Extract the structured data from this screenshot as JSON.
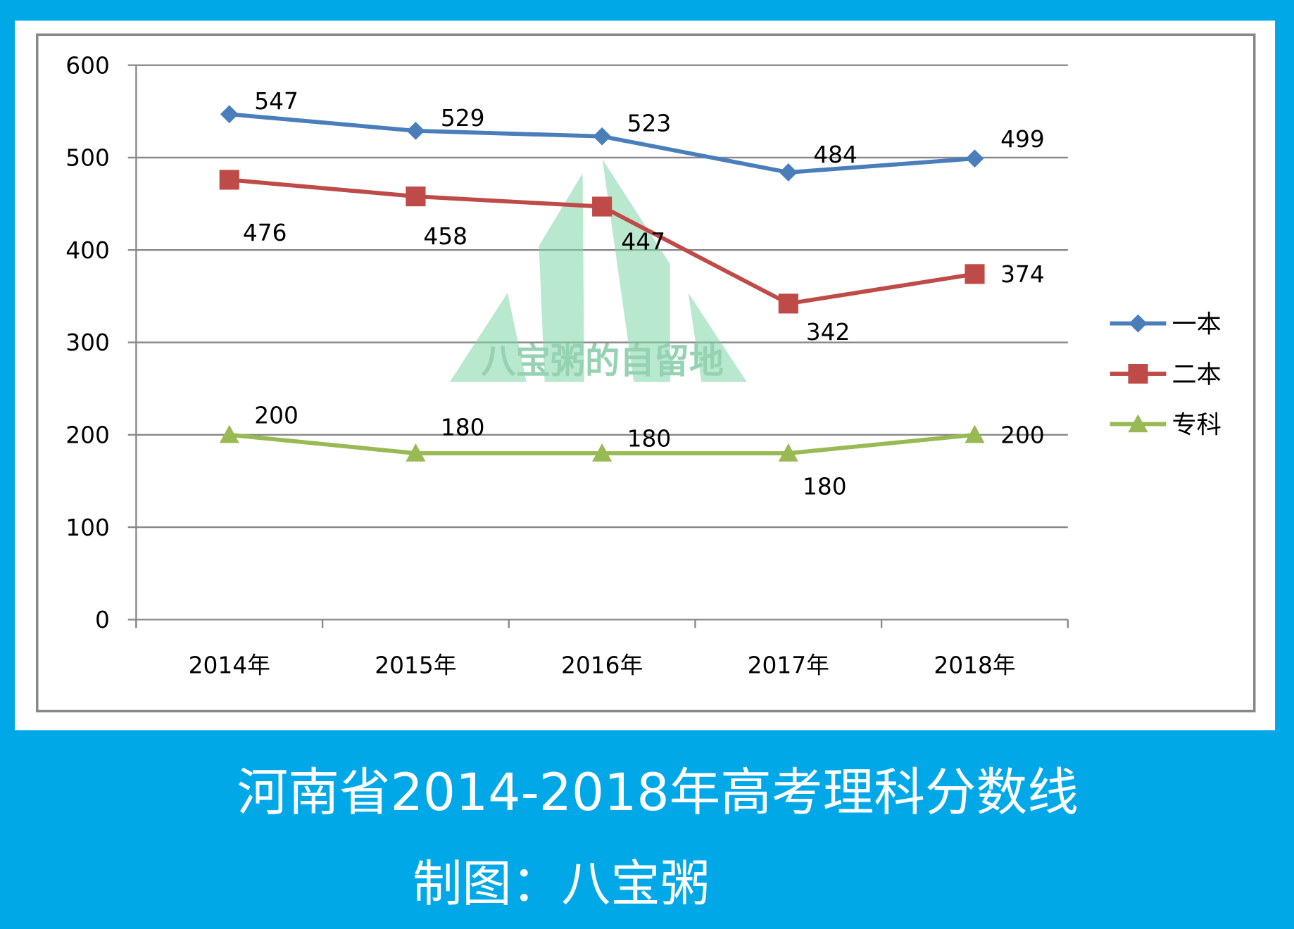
{
  "colors": {
    "background": "#00a8e8",
    "panel": "#ffffff",
    "grid": "#888888",
    "text": "#000000",
    "caption": "#ffffff",
    "watermark": "#7fd6a6"
  },
  "caption": {
    "title": "河南省2014-2018年高考理科分数线",
    "credit": "制图：八宝粥"
  },
  "watermark": {
    "text": "八宝粥的自留地"
  },
  "chart_data": {
    "type": "line",
    "title": "",
    "xlabel": "",
    "ylabel": "",
    "categories": [
      "2014年",
      "2015年",
      "2016年",
      "2017年",
      "2018年"
    ],
    "ylim": [
      0,
      600
    ],
    "yticks": [
      "0",
      "100",
      "200",
      "300",
      "400",
      "500",
      "600"
    ],
    "grid": true,
    "legend_position": "right",
    "series": [
      {
        "name": "一本",
        "values": [
          547,
          529,
          523,
          484,
          499
        ],
        "color": "#4a7ebb",
        "marker": "diamond"
      },
      {
        "name": "二本",
        "values": [
          476,
          458,
          447,
          342,
          374
        ],
        "color": "#be4b48",
        "marker": "square"
      },
      {
        "name": "专科",
        "values": [
          200,
          180,
          180,
          180,
          200
        ],
        "color": "#98b954",
        "marker": "triangle"
      }
    ]
  }
}
